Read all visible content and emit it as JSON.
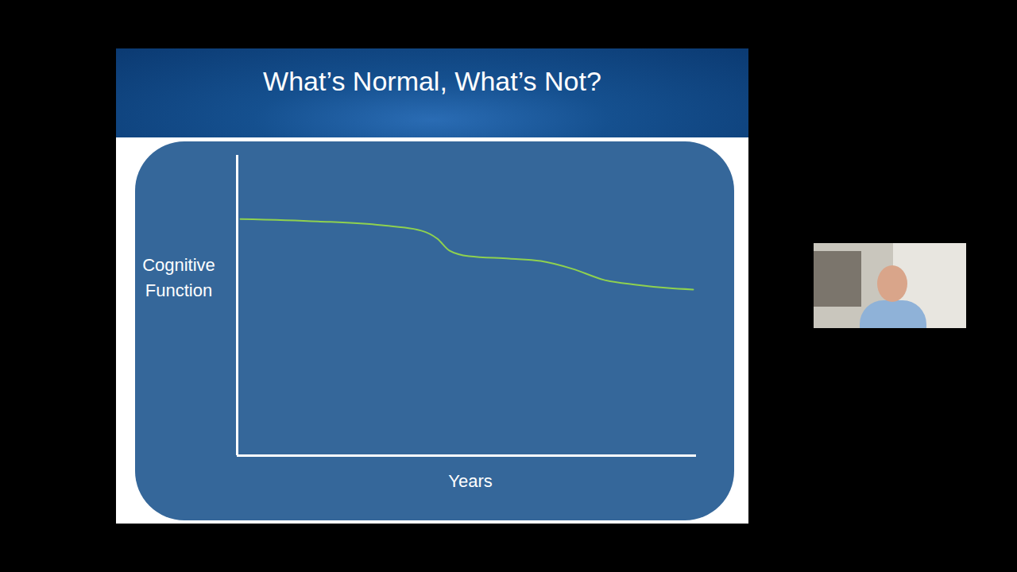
{
  "chart_data": {
    "type": "line",
    "title": "What’s Normal, What’s Not?",
    "x_label": "Years",
    "y_label": "Cognitive Function",
    "x": [
      0.7,
      17.6,
      31.5,
      40.1,
      43.6,
      46.2,
      50.5,
      59.2,
      66.1,
      73.0,
      79.9,
      86.9,
      93.8,
      99.3
    ],
    "values": [
      78.8,
      78.0,
      76.7,
      74.9,
      72.2,
      68.3,
      66.4,
      65.6,
      64.8,
      62.2,
      58.5,
      56.9,
      55.8,
      55.3
    ],
    "color": "#8fd14f",
    "line_style": "solid",
    "xlim": [
      0,
      100
    ],
    "ylim": [
      0,
      100
    ],
    "tick_labels": false,
    "grid": false
  }
}
